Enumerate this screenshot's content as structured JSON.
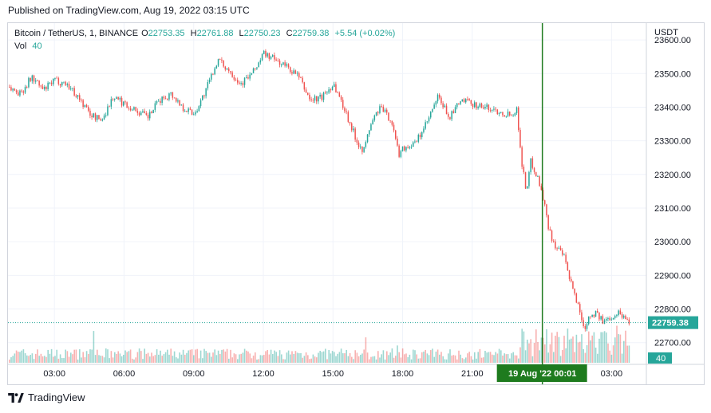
{
  "header": {
    "published": "Published on TradingView.com, Aug 19, 2022 03:15 UTC"
  },
  "legend": {
    "symbol": "Bitcoin / TetherUS, 1, BINANCE",
    "o_label": "O",
    "o_value": "22753.35",
    "h_label": "H",
    "h_value": "22761.88",
    "l_label": "L",
    "l_value": "22750.23",
    "c_label": "C",
    "c_value": "22759.38",
    "change": "+5.54 (+0.02%)",
    "vol_label": "Vol",
    "vol_value": "40"
  },
  "footer": {
    "brand": "TradingView"
  },
  "colors": {
    "up": "#26a69a",
    "down": "#ef5350",
    "crosshair": "#1e7b1e",
    "grid": "#f0f3fa"
  },
  "chart_data": {
    "type": "candlestick",
    "currency": "USDT",
    "y_ticks": [
      22700,
      22800,
      22900,
      23000,
      23100,
      23200,
      23300,
      23400,
      23500,
      23600
    ],
    "y_tick_labels": [
      "22700.00",
      "22800.00",
      "22900.00",
      "23000.00",
      "23100.00",
      "23200.00",
      "23300.00",
      "23400.00",
      "23500.00",
      "23600.00"
    ],
    "ylim": [
      22640,
      23650
    ],
    "x_ticks": [
      "03:00",
      "06:00",
      "09:00",
      "12:00",
      "15:00",
      "18:00",
      "21:00",
      "03:00"
    ],
    "x_range_hours": [
      1.0,
      28.5
    ],
    "x_tick_hours": [
      3,
      6,
      9,
      12,
      15,
      18,
      21,
      27
    ],
    "crosshair": {
      "hour": 24.02,
      "label": "19 Aug '22  00:01"
    },
    "last_price": {
      "value": 22759.38,
      "label": "22759.38"
    },
    "volume_label": "40",
    "price_path": [
      [
        1.0,
        23460
      ],
      [
        1.5,
        23440
      ],
      [
        2.0,
        23490
      ],
      [
        2.5,
        23450
      ],
      [
        3.0,
        23480
      ],
      [
        3.5,
        23470
      ],
      [
        4.0,
        23430
      ],
      [
        4.5,
        23380
      ],
      [
        5.0,
        23360
      ],
      [
        5.5,
        23430
      ],
      [
        6.0,
        23410
      ],
      [
        6.5,
        23390
      ],
      [
        7.0,
        23370
      ],
      [
        7.5,
        23420
      ],
      [
        8.0,
        23440
      ],
      [
        8.5,
        23400
      ],
      [
        9.0,
        23380
      ],
      [
        9.5,
        23450
      ],
      [
        10.0,
        23540
      ],
      [
        10.5,
        23510
      ],
      [
        11.0,
        23470
      ],
      [
        11.5,
        23500
      ],
      [
        12.0,
        23560
      ],
      [
        12.5,
        23540
      ],
      [
        13.0,
        23520
      ],
      [
        13.5,
        23490
      ],
      [
        14.0,
        23420
      ],
      [
        14.5,
        23430
      ],
      [
        15.0,
        23470
      ],
      [
        15.5,
        23390
      ],
      [
        16.0,
        23300
      ],
      [
        16.3,
        23270
      ],
      [
        16.6,
        23350
      ],
      [
        17.0,
        23400
      ],
      [
        17.5,
        23360
      ],
      [
        17.8,
        23260
      ],
      [
        18.0,
        23280
      ],
      [
        18.5,
        23290
      ],
      [
        19.0,
        23350
      ],
      [
        19.5,
        23430
      ],
      [
        20.0,
        23370
      ],
      [
        20.5,
        23420
      ],
      [
        21.0,
        23410
      ],
      [
        21.5,
        23400
      ],
      [
        22.0,
        23390
      ],
      [
        22.5,
        23380
      ],
      [
        22.9,
        23390
      ],
      [
        23.1,
        23240
      ],
      [
        23.3,
        23150
      ],
      [
        23.5,
        23240
      ],
      [
        23.8,
        23190
      ],
      [
        24.0,
        23140
      ],
      [
        24.3,
        23030
      ],
      [
        24.6,
        22980
      ],
      [
        24.9,
        22960
      ],
      [
        25.2,
        22880
      ],
      [
        25.5,
        22820
      ],
      [
        25.8,
        22740
      ],
      [
        26.0,
        22780
      ],
      [
        26.3,
        22790
      ],
      [
        26.6,
        22760
      ],
      [
        27.0,
        22780
      ],
      [
        27.3,
        22790
      ],
      [
        27.6,
        22770
      ],
      [
        27.8,
        22760
      ]
    ]
  }
}
